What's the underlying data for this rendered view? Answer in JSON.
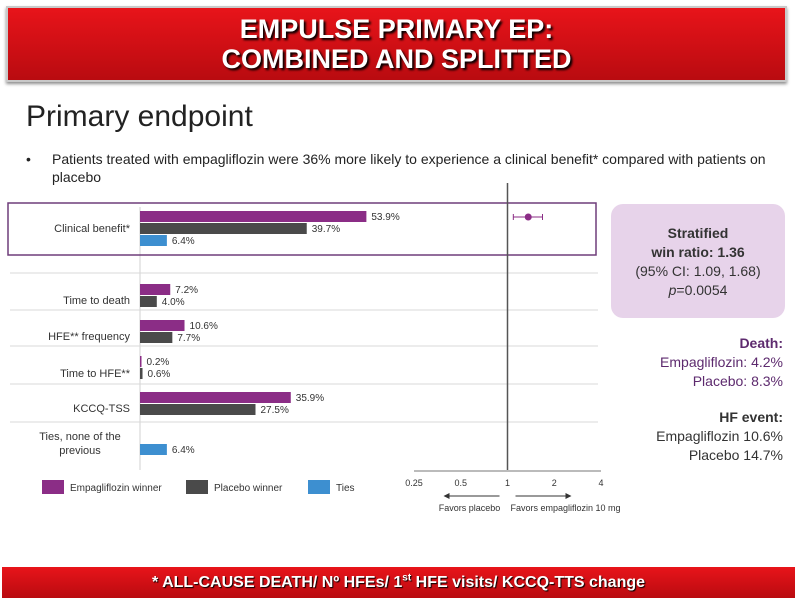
{
  "header": {
    "line1": "EMPULSE PRIMARY EP:",
    "line2": "COMBINED AND SPLITTED"
  },
  "slide": {
    "title": "Primary endpoint",
    "bullet_marker": "•",
    "bullet": "Patients treated with empagliflozin were 36% more likely to experience a clinical benefit* compared with patients on placebo"
  },
  "win_ratio": {
    "line1": "Stratified",
    "line2": "win ratio: 1.36",
    "line3": "(95% CI: 1.09, 1.68)",
    "p_label": "p",
    "p_value": "=0.0054"
  },
  "death": {
    "heading": "Death:",
    "empa": "Empagliflozin: 4.2%",
    "placebo": "Placebo: 8.3%"
  },
  "hf_event": {
    "heading": "HF event:",
    "empa": "Empagliflozin 10.6%",
    "placebo": "Placebo 14.7%"
  },
  "footer": {
    "pre": "* ALL-CAUSE DEATH/ Nº HFEs/ 1",
    "sup": "st",
    "post": " HFE visits/ KCCQ-TTS change"
  },
  "colors": {
    "empagliflozin": "#8b2d86",
    "placebo": "#4a4a4a",
    "ties": "#3d8fd0",
    "highlight_box": "#6f3d7a",
    "banner_red": "#d4111a"
  },
  "chart_data": [
    {
      "type": "bar",
      "orientation": "horizontal",
      "categories": [
        "Clinical benefit*",
        "Time to death",
        "HFE** frequency",
        "Time to HFE**",
        "KCCQ-TSS",
        "Ties, none of the previous"
      ],
      "series": [
        {
          "name": "Empagliflozin winner",
          "values": [
            53.9,
            7.2,
            10.6,
            0.2,
            35.9,
            null
          ],
          "labels": [
            "53.9%",
            "7.2%",
            "10.6%",
            "0.2%",
            "35.9%",
            ""
          ]
        },
        {
          "name": "Placebo winner",
          "values": [
            39.7,
            4.0,
            7.7,
            0.6,
            27.5,
            null
          ],
          "labels": [
            "39.7%",
            "4.0%",
            "7.7%",
            "0.6%",
            "27.5%",
            ""
          ]
        },
        {
          "name": "Ties",
          "values": [
            6.4,
            null,
            null,
            null,
            null,
            6.4
          ],
          "labels": [
            "6.4%",
            "",
            "",
            "",
            "",
            "6.4%"
          ]
        }
      ],
      "xlim": [
        0,
        60
      ],
      "legend": "bottom"
    },
    {
      "type": "scatter",
      "scale": "log",
      "xticks": [
        "0.25",
        "0.5",
        "1",
        "2",
        "4"
      ],
      "xtick_values": [
        0.25,
        0.5,
        1,
        2,
        4
      ],
      "reference_line": 1,
      "point": {
        "estimate": 1.36,
        "ci_low": 1.09,
        "ci_high": 1.68
      },
      "left_label": "Favors placebo",
      "right_label": "Favors empagliflozin 10 mg"
    }
  ]
}
